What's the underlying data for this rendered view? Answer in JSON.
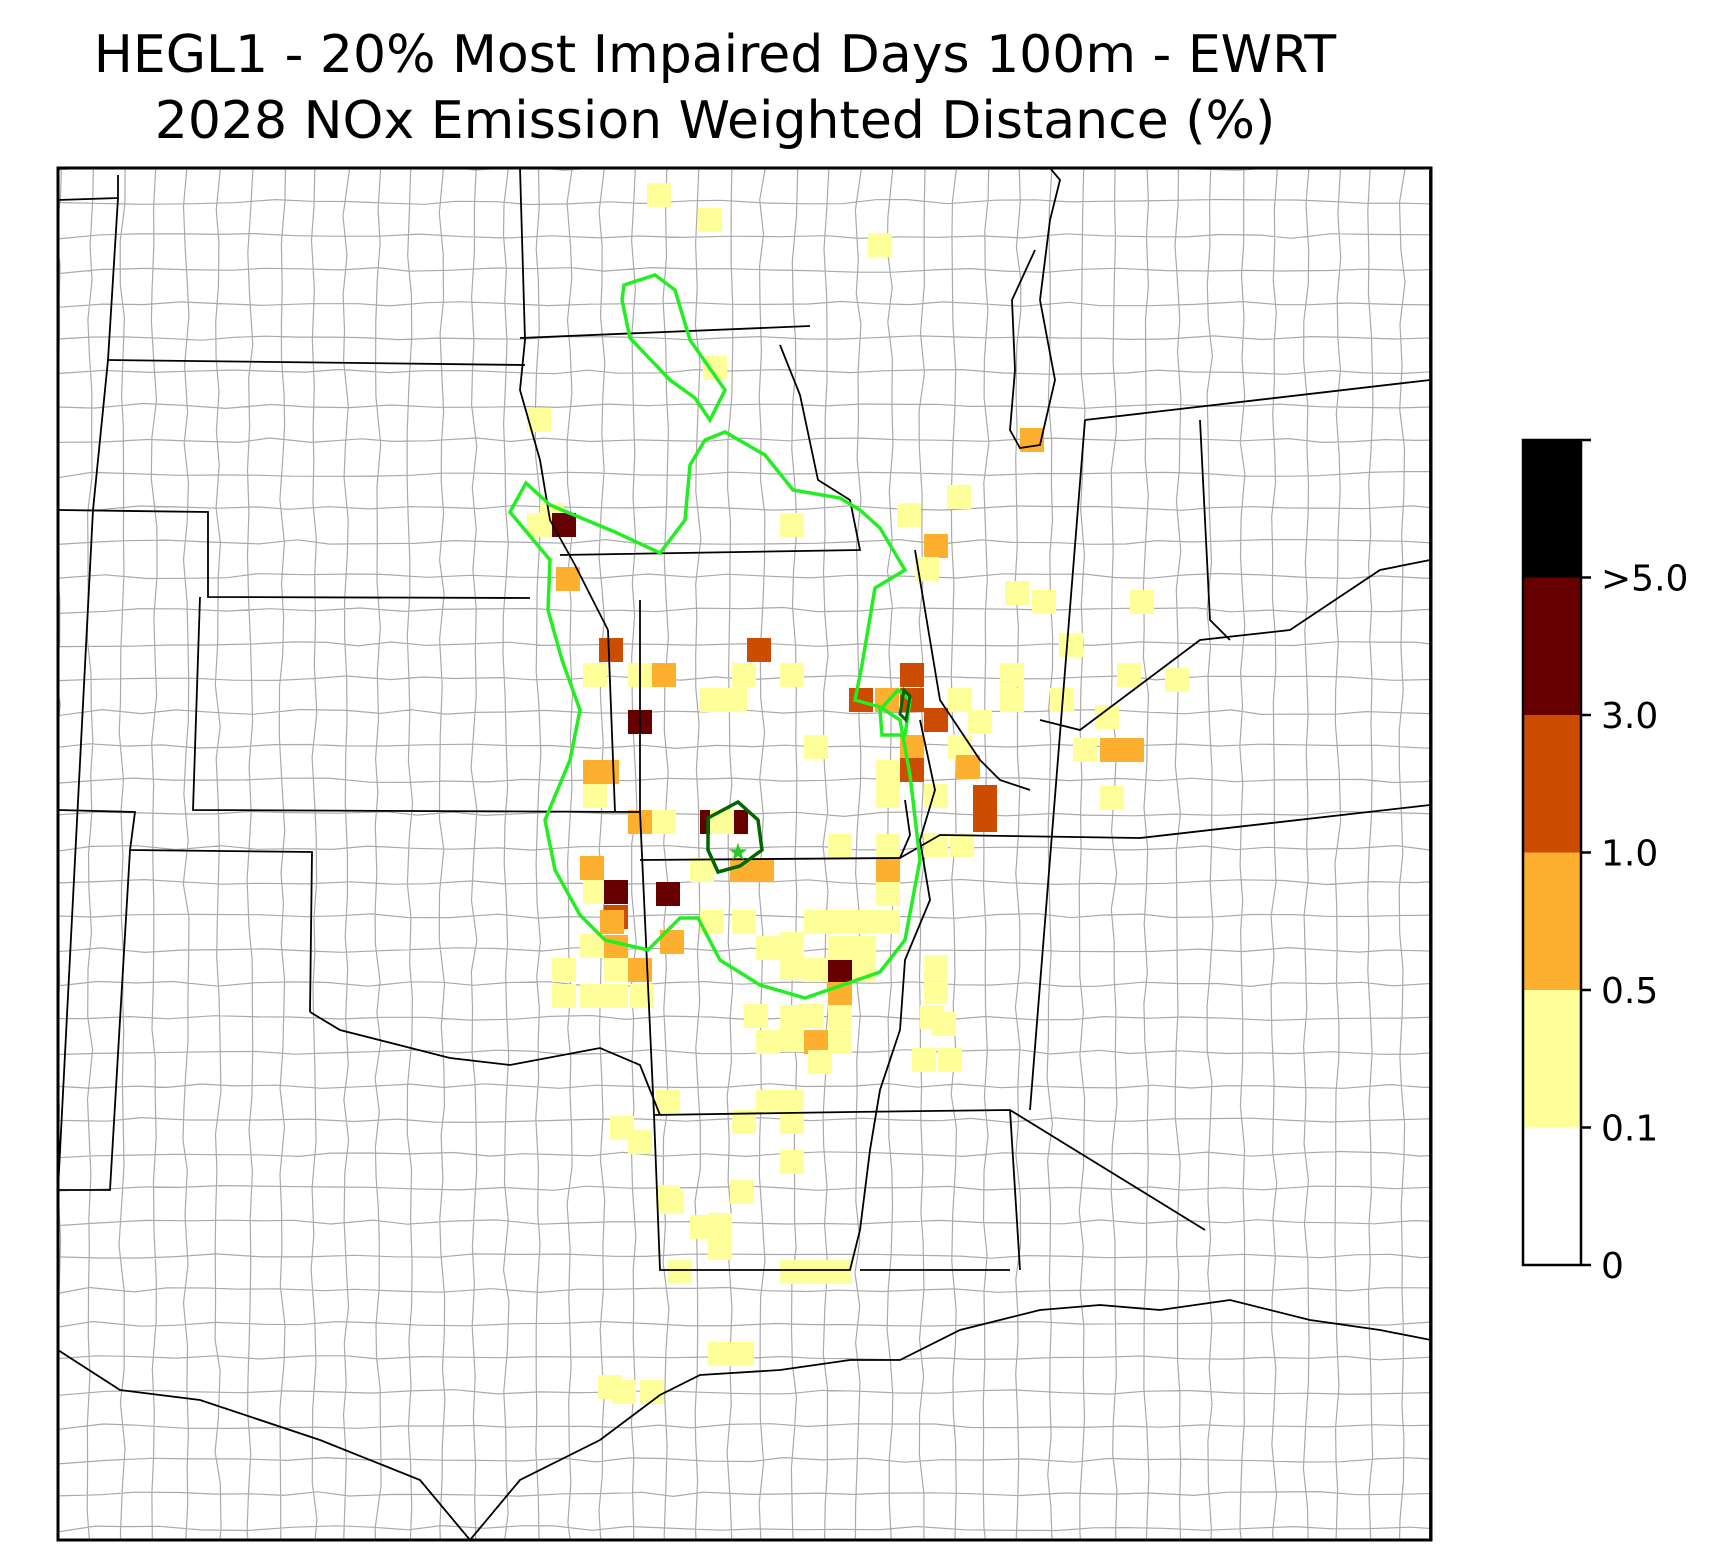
{
  "title": {
    "line1": "HEGL1 - 20% Most Impaired Days 100m - EWRT",
    "line2": "2028 NOx Emission Weighted Distance (%)"
  },
  "colorbar": {
    "levels": [
      {
        "label": "0",
        "color": "#ffffff"
      },
      {
        "label": "0.1",
        "color": "#ffff99"
      },
      {
        "label": "0.5",
        "color": "#fdb030"
      },
      {
        "label": "1.0",
        "color": "#cc4c02"
      },
      {
        "label": "3.0",
        "color": "#660000"
      },
      {
        "label": ">5.0",
        "color": "#000000"
      }
    ],
    "top_color": "#000000"
  },
  "colors": {
    "state_border": "#000000",
    "county_border": "#aaaaaa",
    "outer_contour": "#22ee22",
    "inner_contour": "#006600",
    "site_marker": "#22cc22"
  }
}
